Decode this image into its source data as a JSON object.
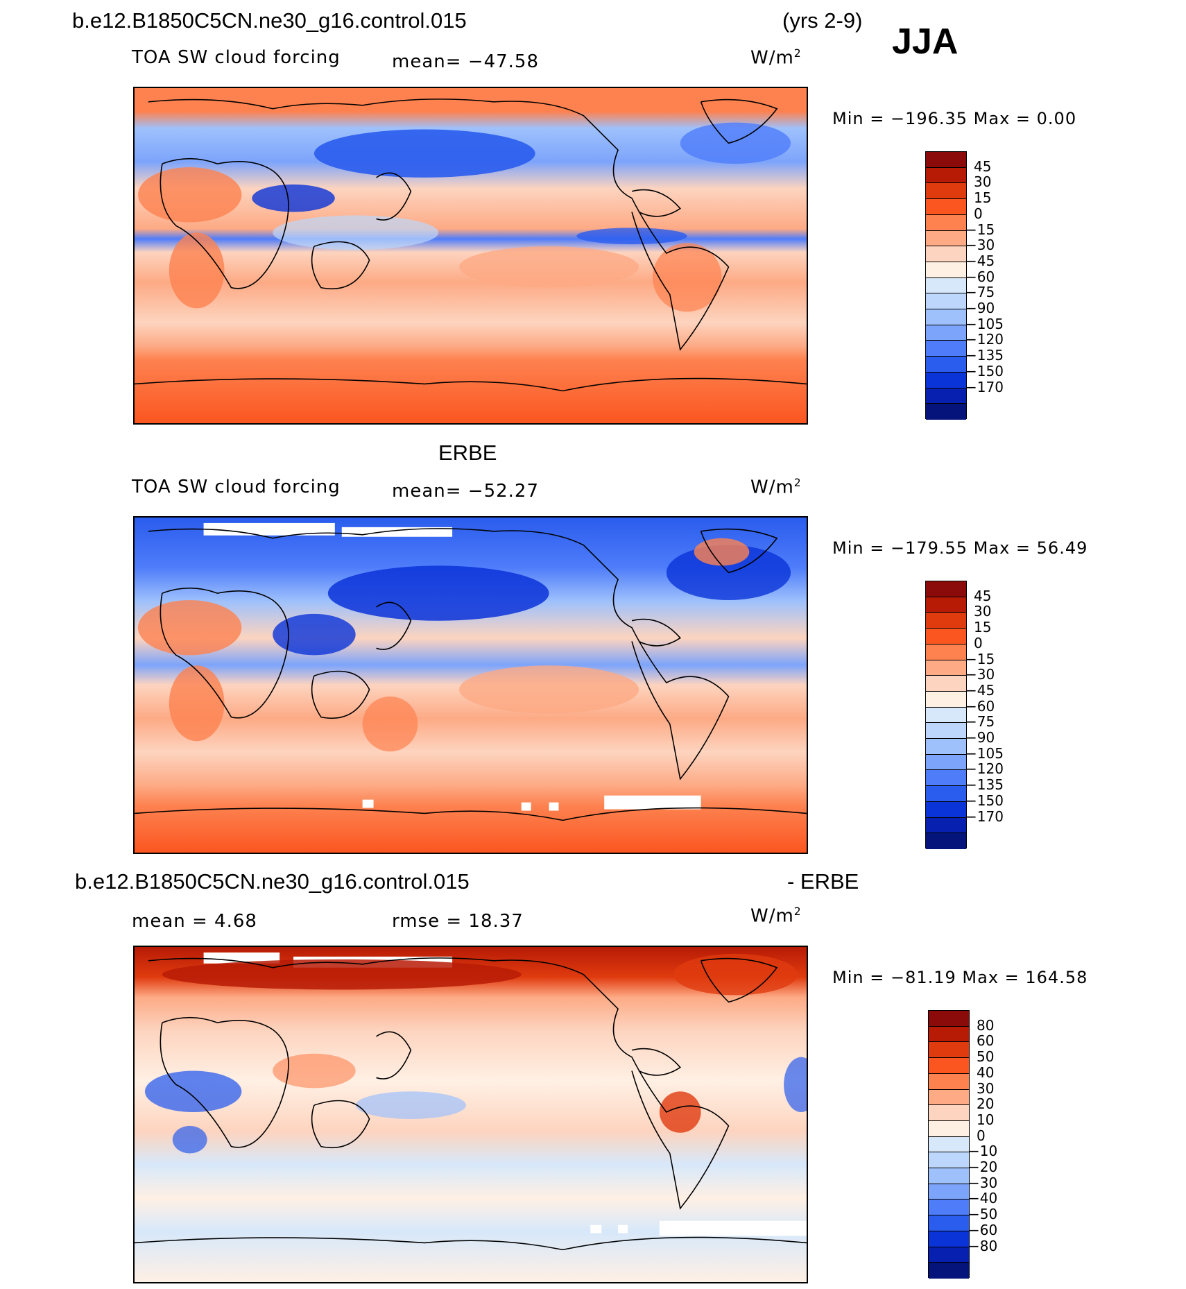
{
  "header": {
    "case_name": "b.e12.B1850C5CN.ne30_g16.control.015",
    "years": "(yrs 2-9)",
    "season": "JJA"
  },
  "panels": [
    {
      "id": "model",
      "title": "",
      "variable": "TOA SW cloud forcing",
      "mean_label": "mean= −47.58",
      "units": "W/m",
      "units_sup": "2",
      "minmax": "Min = −196.35 Max =    0.00",
      "colorbar": {
        "colors": [
          "#8b0a0a",
          "#b71b06",
          "#e03b0f",
          "#fb5620",
          "#fd8250",
          "#fdaa85",
          "#fdd4bf",
          "#fff0e4",
          "#d7e8fa",
          "#bcd7fb",
          "#9ec1fc",
          "#7da4fb",
          "#4f7dfa",
          "#2a5ced",
          "#0a33d8",
          "#0820b0",
          "#05147a"
        ],
        "labels": [
          "45",
          "30",
          "15",
          "0",
          "−15",
          "−30",
          "−45",
          "−60",
          "−75",
          "−90",
          "−105",
          "−120",
          "−135",
          "−150",
          "−170"
        ]
      }
    },
    {
      "id": "obs",
      "title": "ERBE",
      "variable": "TOA SW cloud forcing",
      "mean_label": "mean= −52.27",
      "units": "W/m",
      "units_sup": "2",
      "minmax": "Min = −179.55 Max =   56.49",
      "colorbar": {
        "colors": [
          "#8b0a0a",
          "#b71b06",
          "#e03b0f",
          "#fb5620",
          "#fd8250",
          "#fdaa85",
          "#fdd4bf",
          "#fff0e4",
          "#d7e8fa",
          "#bcd7fb",
          "#9ec1fc",
          "#7da4fb",
          "#4f7dfa",
          "#2a5ced",
          "#0a33d8",
          "#0820b0",
          "#05147a"
        ],
        "labels": [
          "45",
          "30",
          "15",
          "0",
          "−15",
          "−30",
          "−45",
          "−60",
          "−75",
          "−90",
          "−105",
          "−120",
          "−135",
          "−150",
          "−170"
        ]
      }
    },
    {
      "id": "diff",
      "title_left": "b.e12.B1850C5CN.ne30_g16.control.015",
      "title_right": "- ERBE",
      "mean_label": "mean =     4.68",
      "rmse_label": "rmse =   18.37",
      "units": "W/m",
      "units_sup": "2",
      "minmax": "Min = −81.19 Max = 164.58",
      "colorbar": {
        "colors": [
          "#8b0a0a",
          "#b71b06",
          "#e03b0f",
          "#fb5620",
          "#fd8250",
          "#fdaa85",
          "#fdd4bf",
          "#fff0e4",
          "#d7e8fa",
          "#bcd7fb",
          "#9ec1fc",
          "#7da4fb",
          "#4f7dfa",
          "#2a5ced",
          "#0a33d8",
          "#0820b0",
          "#05147a"
        ],
        "labels": [
          "80",
          "60",
          "50",
          "40",
          "30",
          "20",
          "10",
          "0",
          "−10",
          "−20",
          "−30",
          "−40",
          "−50",
          "−60",
          "−80"
        ]
      }
    }
  ]
}
